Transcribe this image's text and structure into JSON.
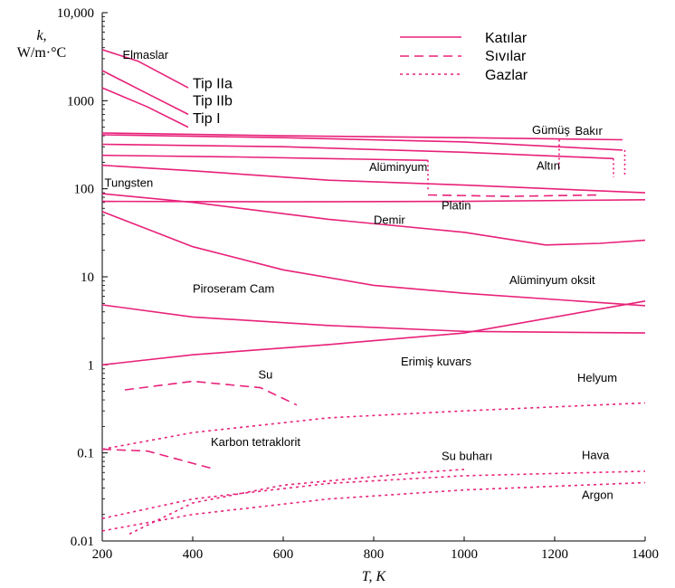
{
  "chart_data": {
    "type": "line",
    "title": "",
    "xlabel": "T, K",
    "ylabel": "k, W/m·°C",
    "ylabel_lines": [
      "k,",
      "W/m·°C"
    ],
    "xlim": [
      200,
      1400
    ],
    "ylim": [
      0.01,
      10000
    ],
    "yscale": "log",
    "x_ticks": [
      "200",
      "400",
      "600",
      "800",
      "1000",
      "1200",
      "1400"
    ],
    "y_ticks": [
      "10,000",
      "1000",
      "100",
      "10",
      "1",
      "0.1",
      "0.01"
    ],
    "grid": false,
    "color": "#e8217a",
    "legend_position": "top-right",
    "legend": [
      {
        "label": "Katılar",
        "style": "solid"
      },
      {
        "label": "Sıvılar",
        "style": "dashed"
      },
      {
        "label": "Gazlar",
        "style": "dotted"
      }
    ],
    "series": [
      {
        "name": "Elmaslar",
        "style": "solid",
        "points": [
          [
            200,
            3800
          ],
          [
            280,
            2800
          ],
          [
            390,
            1400
          ]
        ]
      },
      {
        "name": "Tip IIa",
        "style": "solid",
        "points": [
          [
            200,
            2200
          ],
          [
            300,
            1200
          ],
          [
            390,
            700
          ]
        ]
      },
      {
        "name": "Tip IIb",
        "style": "solid",
        "points": [
          [
            200,
            1400
          ],
          [
            300,
            850
          ],
          [
            390,
            500
          ]
        ]
      },
      {
        "name": "Gümüş",
        "style": "solid",
        "points": [
          [
            200,
            430
          ],
          [
            600,
            400
          ],
          [
            1000,
            380
          ],
          [
            1350,
            360
          ]
        ]
      },
      {
        "name": "Bakır",
        "style": "solid",
        "points": [
          [
            200,
            410
          ],
          [
            600,
            380
          ],
          [
            1000,
            340
          ],
          [
            1350,
            275
          ]
        ]
      },
      {
        "name": "Altın",
        "style": "solid",
        "points": [
          [
            200,
            320
          ],
          [
            600,
            300
          ],
          [
            1000,
            260
          ],
          [
            1330,
            220
          ]
        ]
      },
      {
        "name": "Alüminyum",
        "style": "solid",
        "points": [
          [
            200,
            240
          ],
          [
            500,
            230
          ],
          [
            920,
            210
          ]
        ]
      },
      {
        "name": "Alüminyum (sıvı)",
        "style": "dashed",
        "points": [
          [
            920,
            85
          ],
          [
            1100,
            82
          ],
          [
            1300,
            85
          ]
        ]
      },
      {
        "name": "Tungsten",
        "style": "solid",
        "points": [
          [
            200,
            185
          ],
          [
            400,
            160
          ],
          [
            700,
            125
          ],
          [
            1000,
            110
          ],
          [
            1400,
            90
          ]
        ]
      },
      {
        "name": "Platin",
        "style": "solid",
        "points": [
          [
            200,
            72
          ],
          [
            600,
            71
          ],
          [
            1000,
            72
          ],
          [
            1400,
            75
          ]
        ]
      },
      {
        "name": "Demir",
        "style": "solid",
        "points": [
          [
            200,
            88
          ],
          [
            400,
            70
          ],
          [
            700,
            45
          ],
          [
            1000,
            32
          ],
          [
            1180,
            23
          ],
          [
            1300,
            24
          ],
          [
            1400,
            26
          ]
        ]
      },
      {
        "name": "Alüminyum oksit",
        "style": "solid",
        "points": [
          [
            200,
            55
          ],
          [
            400,
            22
          ],
          [
            600,
            12
          ],
          [
            800,
            8
          ],
          [
            1000,
            6.5
          ],
          [
            1400,
            4.7
          ]
        ]
      },
      {
        "name": "Piroseram Cam",
        "style": "solid",
        "points": [
          [
            200,
            4.8
          ],
          [
            400,
            3.5
          ],
          [
            700,
            2.8
          ],
          [
            1000,
            2.4
          ],
          [
            1400,
            2.3
          ]
        ]
      },
      {
        "name": "Erimiş kuvars",
        "style": "solid",
        "points": [
          [
            200,
            1.0
          ],
          [
            400,
            1.3
          ],
          [
            700,
            1.7
          ],
          [
            1000,
            2.3
          ],
          [
            1400,
            5.3
          ]
        ]
      },
      {
        "name": "Su",
        "style": "dashed",
        "points": [
          [
            250,
            0.52
          ],
          [
            400,
            0.65
          ],
          [
            550,
            0.55
          ],
          [
            630,
            0.35
          ]
        ]
      },
      {
        "name": "Karbon tetraklorit",
        "style": "dashed",
        "points": [
          [
            200,
            0.11
          ],
          [
            300,
            0.105
          ],
          [
            450,
            0.065
          ]
        ]
      },
      {
        "name": "Helyum",
        "style": "dotted",
        "points": [
          [
            200,
            0.11
          ],
          [
            400,
            0.17
          ],
          [
            700,
            0.25
          ],
          [
            1000,
            0.3
          ],
          [
            1400,
            0.37
          ]
        ]
      },
      {
        "name": "Su buharı",
        "style": "dotted",
        "points": [
          [
            260,
            0.012
          ],
          [
            400,
            0.027
          ],
          [
            600,
            0.043
          ],
          [
            900,
            0.06
          ],
          [
            1000,
            0.065
          ]
        ]
      },
      {
        "name": "Hava",
        "style": "dotted",
        "points": [
          [
            200,
            0.018
          ],
          [
            400,
            0.03
          ],
          [
            700,
            0.045
          ],
          [
            1000,
            0.055
          ],
          [
            1400,
            0.062
          ]
        ]
      },
      {
        "name": "Argon",
        "style": "dotted",
        "points": [
          [
            200,
            0.013
          ],
          [
            400,
            0.02
          ],
          [
            700,
            0.03
          ],
          [
            1000,
            0.038
          ],
          [
            1400,
            0.046
          ]
        ]
      }
    ],
    "labels": [
      {
        "text": "Elmaslar",
        "x": 245,
        "y": 3000,
        "size": "small"
      },
      {
        "text": "Tip IIa",
        "x": 400,
        "y": 1380,
        "size": "large"
      },
      {
        "text": "Tip IIb",
        "x": 400,
        "y": 880,
        "size": "large"
      },
      {
        "text": "Tip I",
        "x": 400,
        "y": 560,
        "size": "large"
      },
      {
        "text": "Gümüş",
        "x": 1150,
        "y": 420,
        "size": "small"
      },
      {
        "text": "Bakır",
        "x": 1245,
        "y": 410,
        "size": "small"
      },
      {
        "text": "Altın",
        "x": 1160,
        "y": 165,
        "size": "small"
      },
      {
        "text": "Alüminyum",
        "x": 790,
        "y": 160,
        "size": "small"
      },
      {
        "text": "Tungsten",
        "x": 205,
        "y": 105,
        "size": "small"
      },
      {
        "text": "Platin",
        "x": 950,
        "y": 58,
        "size": "small"
      },
      {
        "text": "Demir",
        "x": 800,
        "y": 40,
        "size": "small"
      },
      {
        "text": "Alüminyum oksit",
        "x": 1100,
        "y": 8.3,
        "size": "small"
      },
      {
        "text": "Piroseram Cam",
        "x": 400,
        "y": 6.6,
        "size": "small"
      },
      {
        "text": "Erimiş kuvars",
        "x": 860,
        "y": 0.98,
        "size": "small"
      },
      {
        "text": "Su",
        "x": 545,
        "y": 0.7,
        "size": "small"
      },
      {
        "text": "Helyum",
        "x": 1250,
        "y": 0.64,
        "size": "small"
      },
      {
        "text": "Karbon tetraklorit",
        "x": 440,
        "y": 0.12,
        "size": "small"
      },
      {
        "text": "Su buharı",
        "x": 950,
        "y": 0.083,
        "size": "small"
      },
      {
        "text": "Hava",
        "x": 1260,
        "y": 0.085,
        "size": "small"
      },
      {
        "text": "Argon",
        "x": 1260,
        "y": 0.03,
        "size": "small"
      }
    ]
  }
}
